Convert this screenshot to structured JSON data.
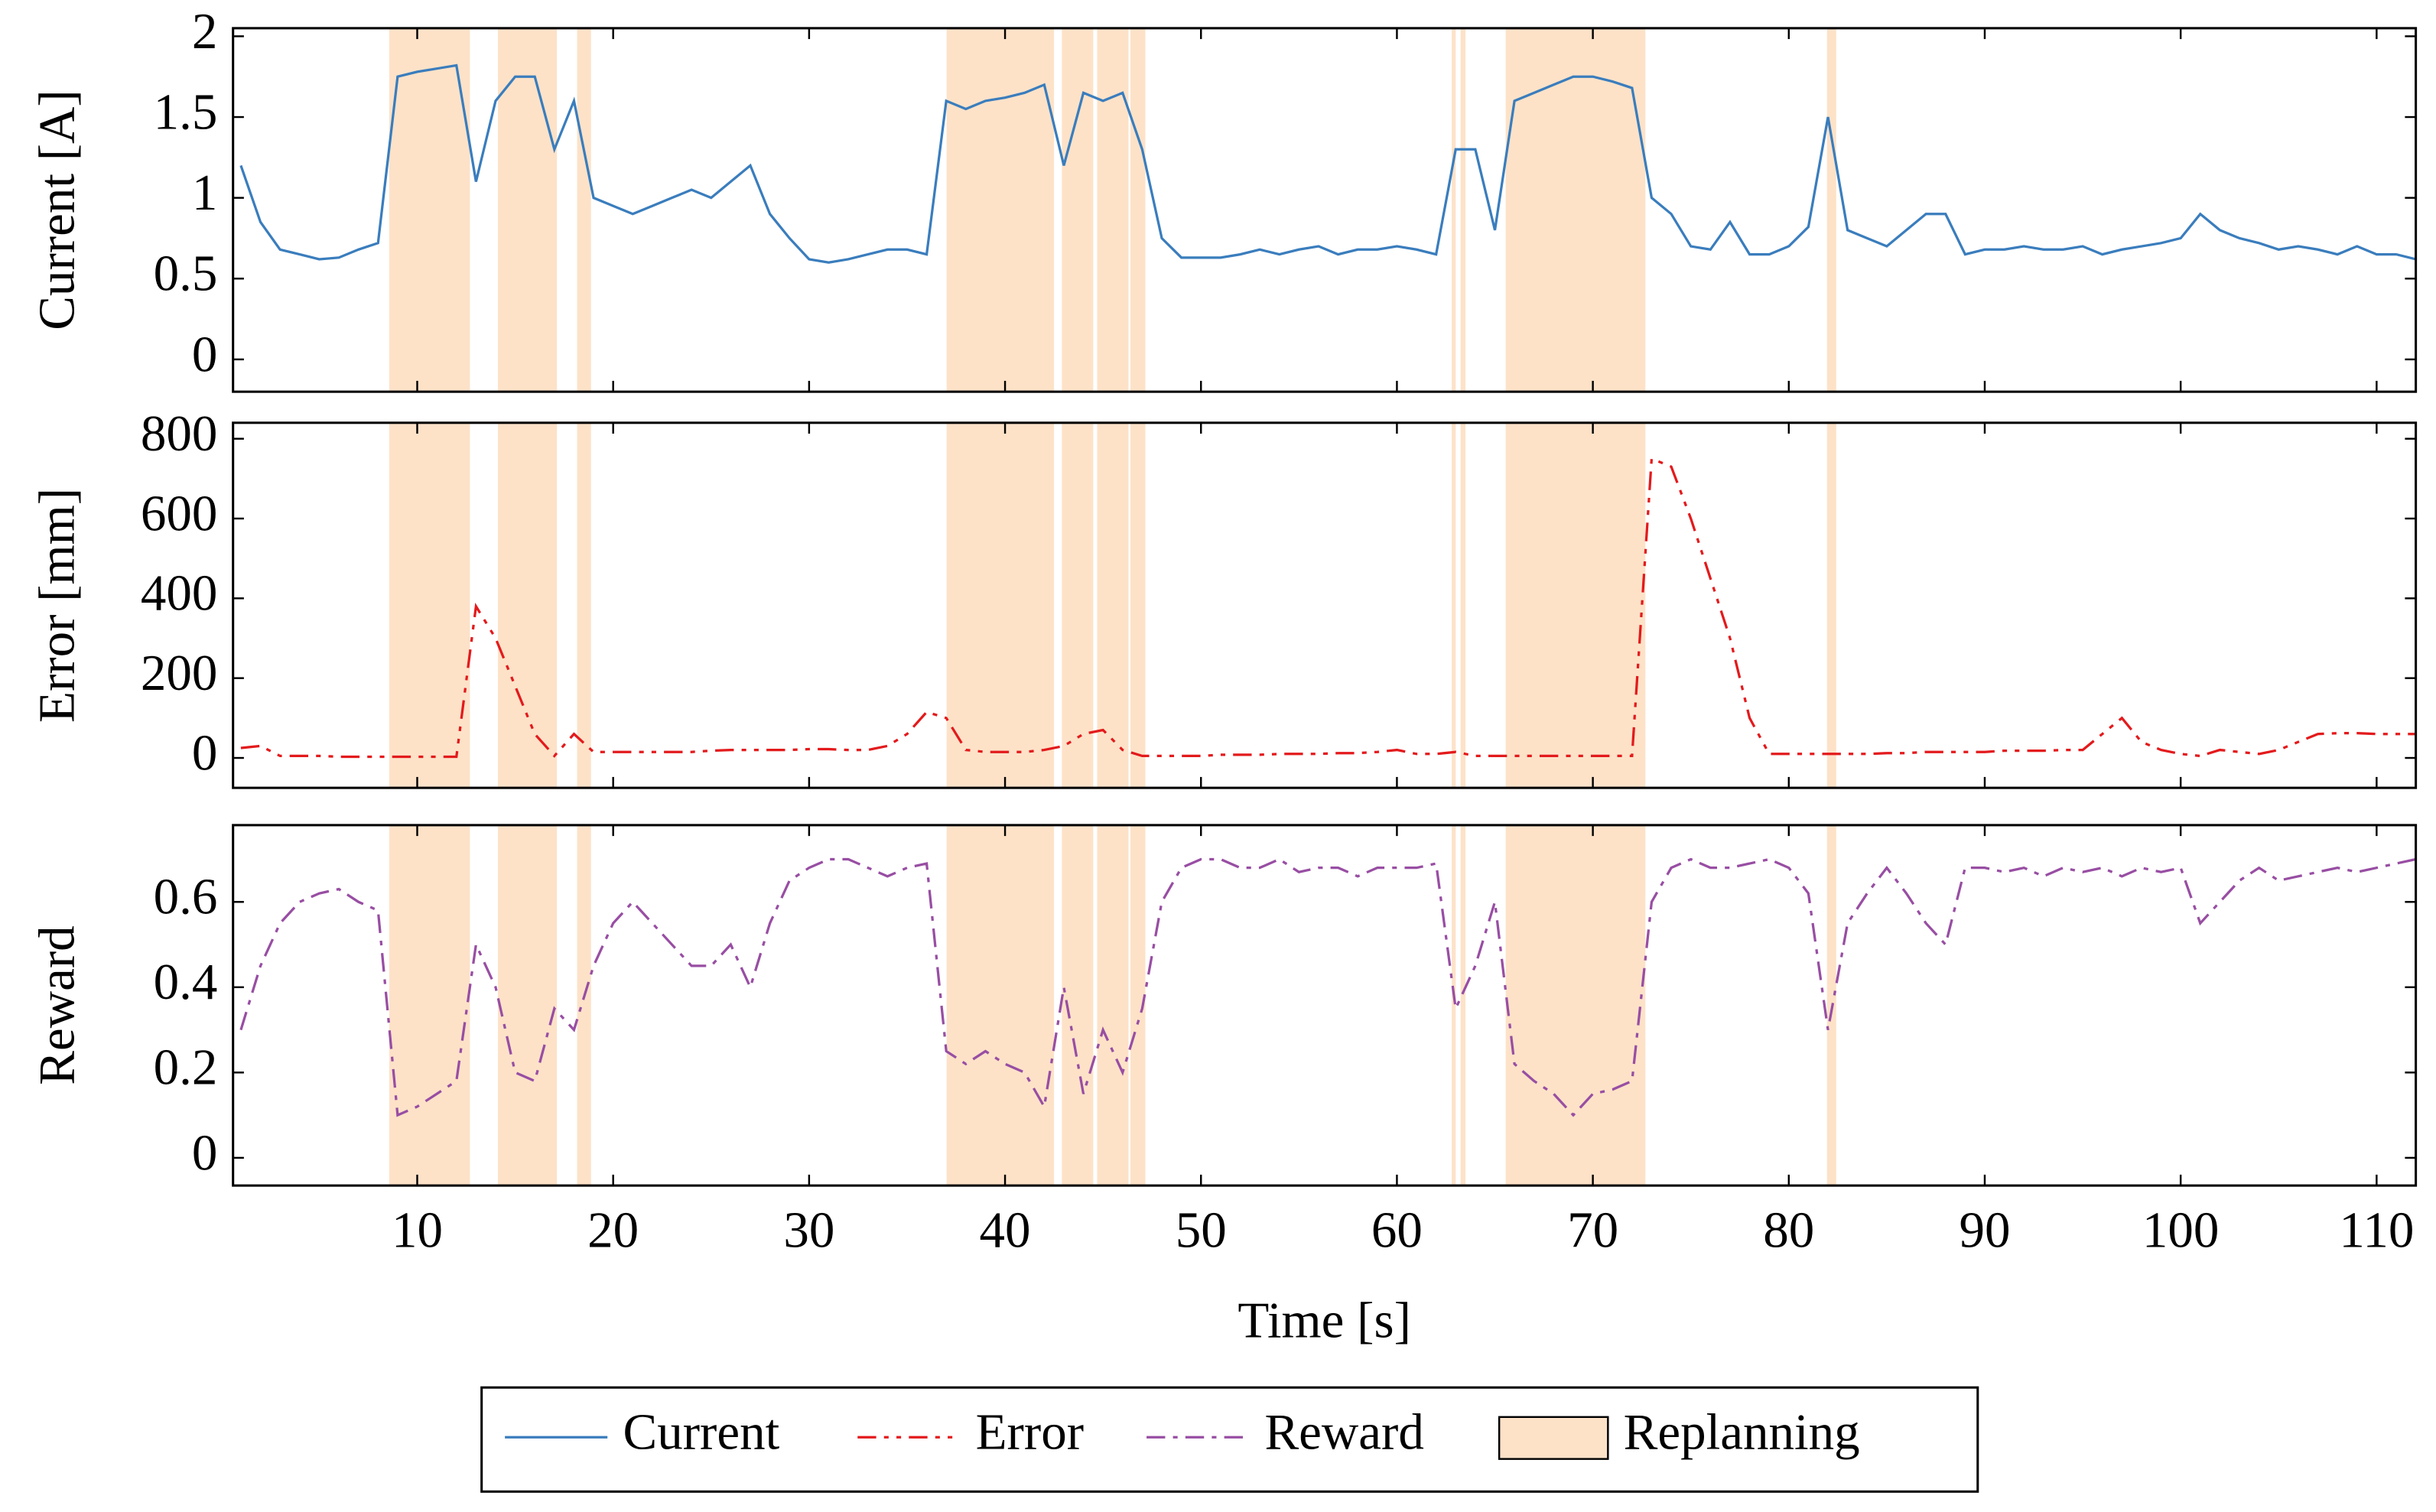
{
  "chart_data": [
    {
      "type": "line",
      "ylabel": "Current [A]",
      "xlim": [
        0.6,
        112
      ],
      "ylim": [
        -0.2,
        2.05
      ],
      "yticks": [
        0,
        0.5,
        1,
        1.5,
        2
      ],
      "x": [
        1,
        2,
        3,
        4,
        5,
        6,
        7,
        8,
        9,
        10,
        11,
        12,
        13,
        14,
        15,
        16,
        17,
        18,
        19,
        20,
        21,
        22,
        23,
        24,
        25,
        26,
        27,
        28,
        29,
        30,
        31,
        32,
        33,
        34,
        35,
        36,
        37,
        38,
        39,
        40,
        41,
        42,
        43,
        44,
        45,
        46,
        47,
        48,
        49,
        50,
        51,
        52,
        53,
        54,
        55,
        56,
        57,
        58,
        59,
        60,
        61,
        62,
        63,
        64,
        65,
        66,
        67,
        68,
        69,
        70,
        71,
        72,
        73,
        74,
        75,
        76,
        77,
        78,
        79,
        80,
        81,
        82,
        83,
        84,
        85,
        86,
        87,
        88,
        89,
        90,
        91,
        92,
        93,
        94,
        95,
        96,
        97,
        98,
        99,
        100,
        101,
        102,
        103,
        104,
        105,
        106,
        107,
        108,
        109,
        110,
        111,
        112
      ],
      "series": [
        {
          "name": "Current",
          "color": "#3a7dbd",
          "dash": "none",
          "values": [
            1.2,
            0.85,
            0.68,
            0.65,
            0.62,
            0.63,
            0.68,
            0.72,
            1.75,
            1.78,
            1.8,
            1.82,
            1.1,
            1.6,
            1.75,
            1.75,
            1.3,
            1.6,
            1.0,
            0.95,
            0.9,
            0.95,
            1.0,
            1.05,
            1.0,
            1.1,
            1.2,
            0.9,
            0.75,
            0.62,
            0.6,
            0.62,
            0.65,
            0.68,
            0.68,
            0.65,
            1.6,
            1.55,
            1.6,
            1.62,
            1.65,
            1.7,
            1.2,
            1.65,
            1.6,
            1.65,
            1.3,
            0.75,
            0.63,
            0.63,
            0.63,
            0.65,
            0.68,
            0.65,
            0.68,
            0.7,
            0.65,
            0.68,
            0.68,
            0.7,
            0.68,
            0.65,
            1.3,
            1.3,
            0.8,
            1.6,
            1.65,
            1.7,
            1.75,
            1.75,
            1.72,
            1.68,
            1.0,
            0.9,
            0.7,
            0.68,
            0.85,
            0.65,
            0.65,
            0.7,
            0.82,
            1.5,
            0.8,
            0.75,
            0.7,
            0.8,
            0.9,
            0.9,
            0.65,
            0.68,
            0.68,
            0.7,
            0.68,
            0.68,
            0.7,
            0.65,
            0.68,
            0.7,
            0.72,
            0.75,
            0.9,
            0.8,
            0.75,
            0.72,
            0.68,
            0.7,
            0.68,
            0.65,
            0.7,
            0.65,
            0.65,
            0.62
          ]
        }
      ]
    },
    {
      "type": "line",
      "ylabel": "Error [mm]",
      "xlim": [
        0.6,
        112
      ],
      "ylim": [
        -75,
        840
      ],
      "yticks": [
        0,
        200,
        400,
        600,
        800
      ],
      "x": [
        1,
        2,
        3,
        4,
        5,
        6,
        7,
        8,
        9,
        10,
        11,
        12,
        13,
        14,
        15,
        16,
        17,
        18,
        19,
        20,
        21,
        22,
        23,
        24,
        25,
        26,
        27,
        28,
        29,
        30,
        31,
        32,
        33,
        34,
        35,
        36,
        37,
        38,
        39,
        40,
        41,
        42,
        43,
        44,
        45,
        46,
        47,
        48,
        49,
        50,
        51,
        52,
        53,
        54,
        55,
        56,
        57,
        58,
        59,
        60,
        61,
        62,
        63,
        64,
        65,
        66,
        67,
        68,
        69,
        70,
        71,
        72,
        73,
        74,
        75,
        76,
        77,
        78,
        79,
        80,
        81,
        82,
        83,
        84,
        85,
        86,
        87,
        88,
        89,
        90,
        91,
        92,
        93,
        94,
        95,
        96,
        97,
        98,
        99,
        100,
        101,
        102,
        103,
        104,
        105,
        106,
        107,
        108,
        109,
        110,
        111,
        112
      ],
      "series": [
        {
          "name": "Error",
          "color": "#e31a1c",
          "dash": "12 5 3 5 3 5",
          "values": [
            25,
            30,
            5,
            5,
            5,
            3,
            3,
            3,
            3,
            3,
            3,
            3,
            380,
            300,
            180,
            60,
            5,
            60,
            15,
            15,
            15,
            15,
            15,
            15,
            18,
            20,
            20,
            20,
            20,
            22,
            22,
            20,
            20,
            30,
            60,
            115,
            100,
            20,
            15,
            15,
            15,
            20,
            30,
            60,
            70,
            20,
            5,
            5,
            5,
            5,
            8,
            8,
            8,
            10,
            10,
            10,
            12,
            12,
            15,
            20,
            10,
            10,
            15,
            5,
            5,
            5,
            5,
            5,
            5,
            5,
            5,
            5,
            750,
            730,
            600,
            450,
            300,
            100,
            10,
            10,
            10,
            10,
            10,
            10,
            12,
            12,
            15,
            15,
            15,
            15,
            18,
            18,
            18,
            20,
            20,
            60,
            100,
            40,
            20,
            10,
            5,
            20,
            15,
            10,
            20,
            40,
            60,
            62,
            62,
            60,
            60,
            60
          ]
        }
      ]
    },
    {
      "type": "line",
      "ylabel": "Reward",
      "xlabel": "Time [s]",
      "xlim": [
        0.6,
        112
      ],
      "ylim": [
        -0.065,
        0.78
      ],
      "yticks": [
        0,
        0.2,
        0.4,
        0.6
      ],
      "xticks": [
        10,
        20,
        30,
        40,
        50,
        60,
        70,
        80,
        90,
        100,
        110
      ],
      "x": [
        1,
        2,
        3,
        4,
        5,
        6,
        7,
        8,
        9,
        10,
        11,
        12,
        13,
        14,
        15,
        16,
        17,
        18,
        19,
        20,
        21,
        22,
        23,
        24,
        25,
        26,
        27,
        28,
        29,
        30,
        31,
        32,
        33,
        34,
        35,
        36,
        37,
        38,
        39,
        40,
        41,
        42,
        43,
        44,
        45,
        46,
        47,
        48,
        49,
        50,
        51,
        52,
        53,
        54,
        55,
        56,
        57,
        58,
        59,
        60,
        61,
        62,
        63,
        64,
        65,
        66,
        67,
        68,
        69,
        70,
        71,
        72,
        73,
        74,
        75,
        76,
        77,
        78,
        79,
        80,
        81,
        82,
        83,
        84,
        85,
        86,
        87,
        88,
        89,
        90,
        91,
        92,
        93,
        94,
        95,
        96,
        97,
        98,
        99,
        100,
        101,
        102,
        103,
        104,
        105,
        106,
        107,
        108,
        109,
        110,
        111,
        112
      ],
      "series": [
        {
          "name": "Reward",
          "color": "#984ea3",
          "dash": "12 5 3 5",
          "values": [
            0.3,
            0.45,
            0.55,
            0.6,
            0.62,
            0.63,
            0.6,
            0.58,
            0.1,
            0.12,
            0.15,
            0.18,
            0.5,
            0.4,
            0.2,
            0.18,
            0.35,
            0.3,
            0.45,
            0.55,
            0.6,
            0.55,
            0.5,
            0.45,
            0.45,
            0.5,
            0.4,
            0.55,
            0.65,
            0.68,
            0.7,
            0.7,
            0.68,
            0.66,
            0.68,
            0.69,
            0.25,
            0.22,
            0.25,
            0.22,
            0.2,
            0.12,
            0.4,
            0.15,
            0.3,
            0.2,
            0.35,
            0.6,
            0.68,
            0.7,
            0.7,
            0.68,
            0.68,
            0.7,
            0.67,
            0.68,
            0.68,
            0.66,
            0.68,
            0.68,
            0.68,
            0.69,
            0.35,
            0.45,
            0.6,
            0.22,
            0.18,
            0.15,
            0.1,
            0.15,
            0.16,
            0.18,
            0.6,
            0.68,
            0.7,
            0.68,
            0.68,
            0.69,
            0.7,
            0.68,
            0.62,
            0.3,
            0.55,
            0.62,
            0.68,
            0.62,
            0.55,
            0.5,
            0.68,
            0.68,
            0.67,
            0.68,
            0.66,
            0.68,
            0.67,
            0.68,
            0.66,
            0.68,
            0.67,
            0.68,
            0.55,
            0.6,
            0.65,
            0.68,
            0.65,
            0.66,
            0.67,
            0.68,
            0.67,
            0.68,
            0.69,
            0.7
          ]
        }
      ]
    }
  ],
  "replanning": {
    "name": "Replanning",
    "color": "#fde2c8",
    "spans": [
      [
        8.57,
        12.69
      ],
      [
        14.12,
        17.13
      ],
      [
        18.16,
        18.87
      ],
      [
        37.02,
        42.5
      ],
      [
        42.9,
        44.5
      ],
      [
        44.7,
        46.3
      ],
      [
        46.4,
        47.16
      ],
      [
        62.8,
        63.0
      ],
      [
        63.25,
        63.5
      ],
      [
        65.55,
        72.68
      ],
      [
        81.95,
        82.42
      ]
    ]
  }
}
